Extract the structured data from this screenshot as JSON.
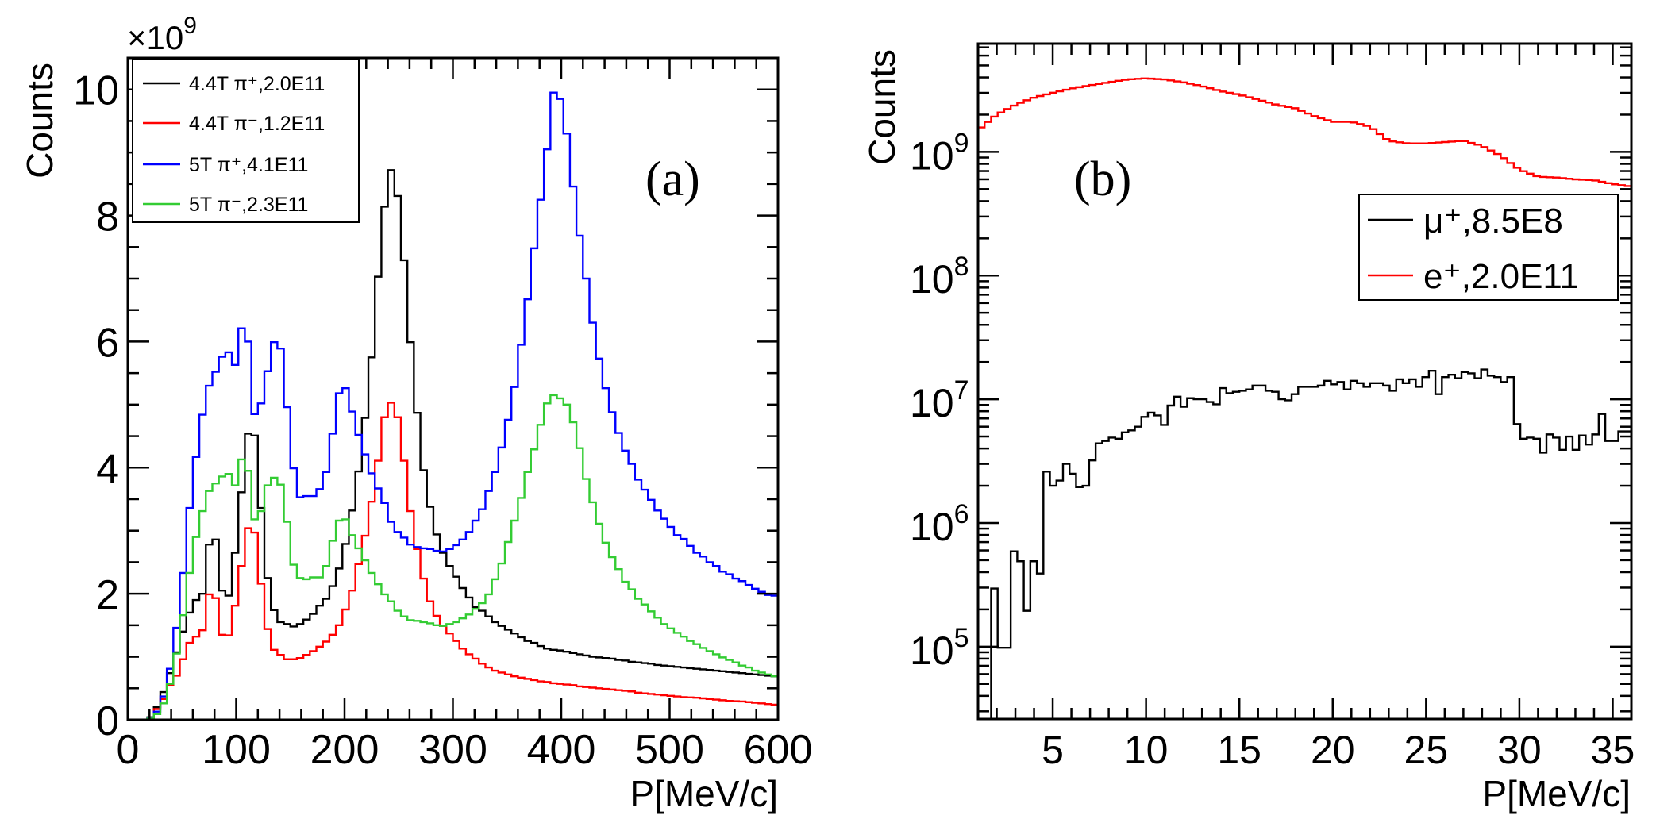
{
  "chart_data": [
    {
      "type": "line",
      "panel_label": "(a)",
      "xlabel": "P[MeV/c]",
      "ylabel": "Counts",
      "y_multiplier": {
        "base": "×10",
        "exp": "9"
      },
      "xlim": [
        0,
        600
      ],
      "ylim": [
        0,
        10.5
      ],
      "x_ticks": [
        0,
        100,
        200,
        300,
        400,
        500,
        600
      ],
      "x_tick_labels": [
        "0",
        "100",
        "200",
        "300",
        "400",
        "500",
        "600"
      ],
      "y_ticks": [
        0,
        2,
        4,
        6,
        8,
        10
      ],
      "y_tick_labels": [
        "0",
        "2",
        "4",
        "6",
        "8",
        "10"
      ],
      "grid": false,
      "legend_position": "top-left",
      "histogram": true,
      "bin_width": 6,
      "series": [
        {
          "name": "4.4T π⁺,2.0E11",
          "color": "#000000",
          "values": [
            0,
            0,
            0,
            0.04,
            0.2,
            0.44,
            0.74,
            1.07,
            1.4,
            1.7,
            1.9,
            2.0,
            2.78,
            2.86,
            2.05,
            1.97,
            2.65,
            3.61,
            4.54,
            4.51,
            3.36,
            2.25,
            1.74,
            1.55,
            1.52,
            1.48,
            1.52,
            1.59,
            1.68,
            1.81,
            1.92,
            2.12,
            2.4,
            2.79,
            3.32,
            3.94,
            4.79,
            5.75,
            7.03,
            8.14,
            8.72,
            8.31,
            7.29,
            5.99,
            4.87,
            3.96,
            3.38,
            2.94,
            2.65,
            2.44,
            2.27,
            2.09,
            1.94,
            1.79,
            1.73,
            1.64,
            1.55,
            1.49,
            1.43,
            1.37,
            1.31,
            1.25,
            1.22,
            1.17,
            1.13,
            1.11,
            1.1,
            1.08,
            1.06,
            1.04,
            1.02,
            1.0,
            0.99,
            0.98,
            0.97,
            0.95,
            0.94,
            0.92,
            0.91,
            0.9,
            0.89,
            0.87,
            0.86,
            0.85,
            0.84,
            0.83,
            0.82,
            0.81,
            0.8,
            0.79,
            0.78,
            0.77,
            0.76,
            0.75,
            0.74,
            0.73,
            0.72,
            0.71,
            0.7,
            0.69
          ]
        },
        {
          "name": "4.4T π⁻,1.2E11",
          "color": "#ff0000",
          "values": [
            0,
            0,
            0,
            0.03,
            0.17,
            0.33,
            0.55,
            0.7,
            0.96,
            1.22,
            1.32,
            1.42,
            1.99,
            1.93,
            1.35,
            1.34,
            1.81,
            2.44,
            3.04,
            2.97,
            2.16,
            1.44,
            1.11,
            1.03,
            0.96,
            0.96,
            0.98,
            1.03,
            1.09,
            1.16,
            1.24,
            1.35,
            1.5,
            1.75,
            2.05,
            2.47,
            2.92,
            3.46,
            4.11,
            4.8,
            5.03,
            4.8,
            4.11,
            3.31,
            2.71,
            2.24,
            1.88,
            1.65,
            1.49,
            1.37,
            1.25,
            1.13,
            1.04,
            0.97,
            0.89,
            0.83,
            0.78,
            0.75,
            0.72,
            0.69,
            0.67,
            0.65,
            0.63,
            0.61,
            0.6,
            0.58,
            0.57,
            0.56,
            0.55,
            0.53,
            0.52,
            0.51,
            0.5,
            0.49,
            0.48,
            0.47,
            0.46,
            0.45,
            0.43,
            0.42,
            0.41,
            0.4,
            0.39,
            0.38,
            0.37,
            0.36,
            0.355,
            0.35,
            0.34,
            0.33,
            0.32,
            0.31,
            0.3,
            0.295,
            0.29,
            0.28,
            0.27,
            0.26,
            0.25,
            0.24
          ]
        },
        {
          "name": "5T π⁺,4.1E11",
          "color": "#0000ff",
          "values": [
            0,
            0,
            0,
            0.03,
            0.13,
            0.37,
            0.81,
            1.46,
            2.33,
            3.36,
            4.17,
            4.84,
            5.3,
            5.52,
            5.76,
            5.83,
            5.63,
            6.21,
            6.0,
            4.85,
            5.02,
            5.53,
            5.99,
            5.89,
            4.96,
            3.99,
            3.53,
            3.55,
            3.55,
            3.66,
            3.93,
            4.54,
            5.18,
            5.26,
            4.89,
            4.52,
            4.21,
            3.91,
            3.67,
            3.44,
            3.14,
            2.98,
            2.89,
            2.78,
            2.74,
            2.72,
            2.71,
            2.68,
            2.67,
            2.71,
            2.77,
            2.86,
            2.98,
            3.16,
            3.34,
            3.63,
            3.93,
            4.32,
            4.76,
            5.28,
            5.95,
            6.67,
            7.48,
            8.25,
            9.05,
            9.95,
            9.85,
            9.3,
            8.46,
            7.68,
            7.0,
            6.3,
            5.73,
            5.26,
            4.88,
            4.55,
            4.27,
            4.06,
            3.81,
            3.65,
            3.49,
            3.32,
            3.19,
            3.06,
            2.93,
            2.87,
            2.76,
            2.65,
            2.59,
            2.5,
            2.44,
            2.35,
            2.31,
            2.24,
            2.2,
            2.14,
            2.08,
            2.03,
            1.98,
            1.97
          ]
        },
        {
          "name": "5T π⁻,2.3E11",
          "color": "#33cc33",
          "values": [
            0,
            0,
            0,
            0.02,
            0.09,
            0.26,
            0.57,
            1.05,
            1.66,
            2.33,
            2.9,
            3.31,
            3.63,
            3.75,
            3.86,
            3.9,
            3.72,
            4.13,
            3.95,
            3.18,
            3.31,
            3.72,
            3.84,
            3.73,
            3.14,
            2.46,
            2.25,
            2.23,
            2.26,
            2.26,
            2.44,
            2.84,
            3.16,
            3.18,
            2.93,
            2.72,
            2.53,
            2.33,
            2.15,
            1.99,
            1.88,
            1.73,
            1.64,
            1.58,
            1.57,
            1.55,
            1.53,
            1.5,
            1.49,
            1.52,
            1.55,
            1.61,
            1.67,
            1.76,
            1.85,
            1.99,
            2.23,
            2.48,
            2.82,
            3.16,
            3.52,
            3.93,
            4.29,
            4.68,
            5.02,
            5.15,
            5.1,
            5.0,
            4.72,
            4.31,
            3.82,
            3.45,
            3.11,
            2.81,
            2.58,
            2.39,
            2.19,
            2.07,
            1.92,
            1.83,
            1.72,
            1.62,
            1.52,
            1.45,
            1.38,
            1.32,
            1.25,
            1.2,
            1.14,
            1.09,
            1.04,
            0.99,
            0.95,
            0.91,
            0.86,
            0.83,
            0.78,
            0.75,
            0.72,
            0.69
          ]
        }
      ]
    },
    {
      "type": "line",
      "panel_label": "(b)",
      "xlabel": "P[MeV/c]",
      "ylabel": "Counts",
      "xlim": [
        1,
        36
      ],
      "ylim": [
        26000,
        7500000000
      ],
      "y_scale": "log",
      "x_ticks": [
        5,
        10,
        15,
        20,
        25,
        30,
        35
      ],
      "x_tick_labels": [
        "5",
        "10",
        "15",
        "20",
        "25",
        "30",
        "35"
      ],
      "y_ticks": [
        100000,
        1000000,
        10000000,
        100000000,
        1000000000
      ],
      "y_tick_labels": [
        {
          "base": "10",
          "exp": "5"
        },
        {
          "base": "10",
          "exp": "6"
        },
        {
          "base": "10",
          "exp": "7"
        },
        {
          "base": "10",
          "exp": "8"
        },
        {
          "base": "10",
          "exp": "9"
        }
      ],
      "grid": false,
      "legend_position": "top-right",
      "series": [
        {
          "name": "μ⁺,8.5E8",
          "color": "#000000",
          "histogram": true,
          "bin_width": 0.35,
          "values": [
            0,
            0,
            295000,
            98000,
            98000,
            590000,
            490000,
            195000,
            490000,
            390000,
            2600000,
            2000000,
            2200000,
            3000000,
            2500000,
            1950000,
            2000000,
            3200000,
            4400000,
            4600000,
            4900000,
            4800000,
            5400000,
            5600000,
            6000000,
            7200000,
            7800000,
            7400000,
            6200000,
            8900000,
            10500000,
            8700000,
            10200000,
            10000000,
            10000000,
            9500000,
            9100000,
            12300000,
            11200000,
            11500000,
            11700000,
            12000000,
            12900000,
            12900000,
            11700000,
            11500000,
            10000000,
            9800000,
            11000000,
            12600000,
            12600000,
            12600000,
            12900000,
            14100000,
            13200000,
            13800000,
            12000000,
            14100000,
            13500000,
            12600000,
            13500000,
            13500000,
            12900000,
            11700000,
            14500000,
            13500000,
            14500000,
            12600000,
            15100000,
            17000000,
            11000000,
            15100000,
            15800000,
            14800000,
            16600000,
            16200000,
            14800000,
            17400000,
            15500000,
            15100000,
            13800000,
            15100000,
            6300000,
            4800000,
            4900000,
            4800000,
            3700000,
            5200000,
            4900000,
            3900000,
            5000000,
            3900000,
            5100000,
            4300000,
            5200000,
            7600000,
            4600000,
            4600000,
            5500000,
            5500000
          ]
        },
        {
          "name": "e⁺,2.0E11",
          "color": "#ff0000",
          "x": [
            1,
            2,
            3,
            4,
            5,
            6,
            7,
            8,
            9,
            10,
            11,
            12,
            13,
            14,
            15,
            16,
            17,
            18,
            19,
            20,
            21,
            22,
            23,
            24,
            25,
            26,
            27,
            28,
            29,
            30,
            31,
            32,
            33,
            34,
            35,
            36
          ],
          "values": [
            1500000000,
            2000000000,
            2400000000,
            2750000000,
            3000000000,
            3250000000,
            3450000000,
            3650000000,
            3850000000,
            3930000000,
            3850000000,
            3650000000,
            3400000000,
            3100000000,
            2900000000,
            2650000000,
            2400000000,
            2250000000,
            1950000000,
            1750000000,
            1750000000,
            1600000000,
            1230000000,
            1170000000,
            1170000000,
            1200000000,
            1230000000,
            1120000000,
            930000000,
            720000000,
            630000000,
            620000000,
            600000000,
            590000000,
            550000000,
            525000000
          ]
        }
      ]
    }
  ]
}
